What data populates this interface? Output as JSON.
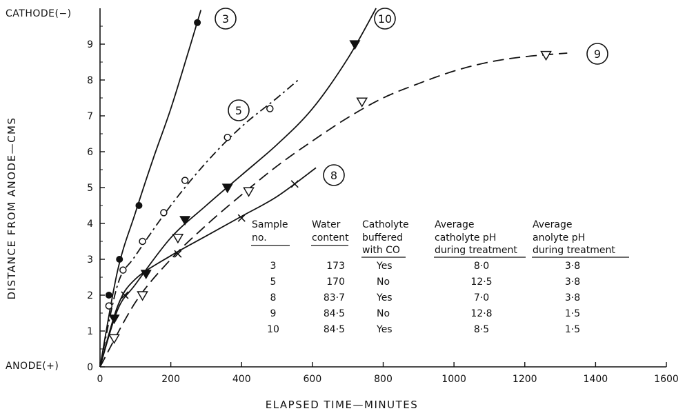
{
  "chart_data": {
    "type": "line",
    "xlabel": "ELAPSED TIME—MINUTES",
    "ylabel": "DISTANCE FROM ANODE—CMS",
    "xlim": [
      0,
      1600
    ],
    "ylim": [
      0,
      10
    ],
    "x_ticks": [
      "0",
      "200",
      "400",
      "600",
      "800",
      "1000",
      "1200",
      "1400",
      "1600"
    ],
    "y_ticks": [
      "0",
      "1",
      "2",
      "3",
      "4",
      "5",
      "6",
      "7",
      "8",
      "9"
    ],
    "top_label": "CATHODE(−)",
    "bottom_label": "ANODE(+)",
    "grid": false,
    "series": [
      {
        "name": "3",
        "marker": "filled-circle",
        "line": "solid",
        "x": [
          25,
          55,
          110,
          275
        ],
        "y": [
          2.0,
          3.0,
          4.5,
          9.6
        ],
        "curve_x": [
          0,
          50,
          100,
          150,
          200,
          250,
          285
        ],
        "curve_y": [
          0,
          2.7,
          4.3,
          5.8,
          7.2,
          8.8,
          9.95
        ]
      },
      {
        "name": "5",
        "marker": "open-circle",
        "line": "dash-dot",
        "x": [
          25,
          65,
          120,
          180,
          240,
          360,
          480
        ],
        "y": [
          1.7,
          2.7,
          3.5,
          4.3,
          5.2,
          6.4,
          7.2
        ],
        "curve_x": [
          0,
          50,
          100,
          200,
          300,
          400,
          500,
          560
        ],
        "curve_y": [
          0,
          2.3,
          3.1,
          4.5,
          5.7,
          6.7,
          7.5,
          8.0
        ]
      },
      {
        "name": "8",
        "marker": "cross",
        "line": "solid",
        "x": [
          70,
          220,
          400,
          550
        ],
        "y": [
          2.0,
          3.15,
          4.15,
          5.1
        ],
        "curve_x": [
          0,
          50,
          100,
          200,
          300,
          400,
          500,
          610
        ],
        "curve_y": [
          0,
          1.7,
          2.45,
          3.1,
          3.65,
          4.2,
          4.75,
          5.55
        ]
      },
      {
        "name": "9",
        "marker": "open-triangle-down",
        "line": "dashed",
        "x": [
          40,
          120,
          220,
          420,
          740,
          1260
        ],
        "y": [
          0.8,
          2.0,
          3.6,
          4.9,
          7.4,
          8.7
        ],
        "curve_x": [
          0,
          100,
          200,
          300,
          400,
          500,
          600,
          700,
          800,
          900,
          1000,
          1100,
          1200,
          1320
        ],
        "curve_y": [
          0,
          1.8,
          3.0,
          3.95,
          4.8,
          5.6,
          6.3,
          6.95,
          7.5,
          7.9,
          8.25,
          8.5,
          8.65,
          8.75
        ]
      },
      {
        "name": "10",
        "marker": "filled-triangle-down",
        "line": "solid",
        "x": [
          40,
          130,
          240,
          360,
          720
        ],
        "y": [
          1.35,
          2.6,
          4.1,
          5.0,
          9.0
        ],
        "curve_x": [
          0,
          50,
          100,
          200,
          300,
          400,
          500,
          600,
          700,
          780
        ],
        "curve_y": [
          0,
          1.6,
          2.3,
          3.6,
          4.5,
          5.35,
          6.2,
          7.2,
          8.6,
          10.0
        ]
      }
    ],
    "table": {
      "headers": [
        [
          "Sample",
          "no."
        ],
        [
          "Water",
          "content"
        ],
        [
          "Catholyte",
          "buffered",
          "with CO"
        ],
        [
          "Average",
          "catholyte pH",
          "during treatment"
        ],
        [
          "Average",
          "anolyte pH",
          "during treatment"
        ]
      ],
      "rows": [
        [
          "3",
          "173",
          "Yes",
          "8·0",
          "3·8"
        ],
        [
          "5",
          "170",
          "No",
          "12·5",
          "3·8"
        ],
        [
          "8",
          "83·7",
          "Yes",
          "7·0",
          "3·8"
        ],
        [
          "9",
          "84·5",
          "No",
          "12·8",
          "1·5"
        ],
        [
          "10",
          "84·5",
          "Yes",
          "8·5",
          "1·5"
        ]
      ]
    }
  }
}
